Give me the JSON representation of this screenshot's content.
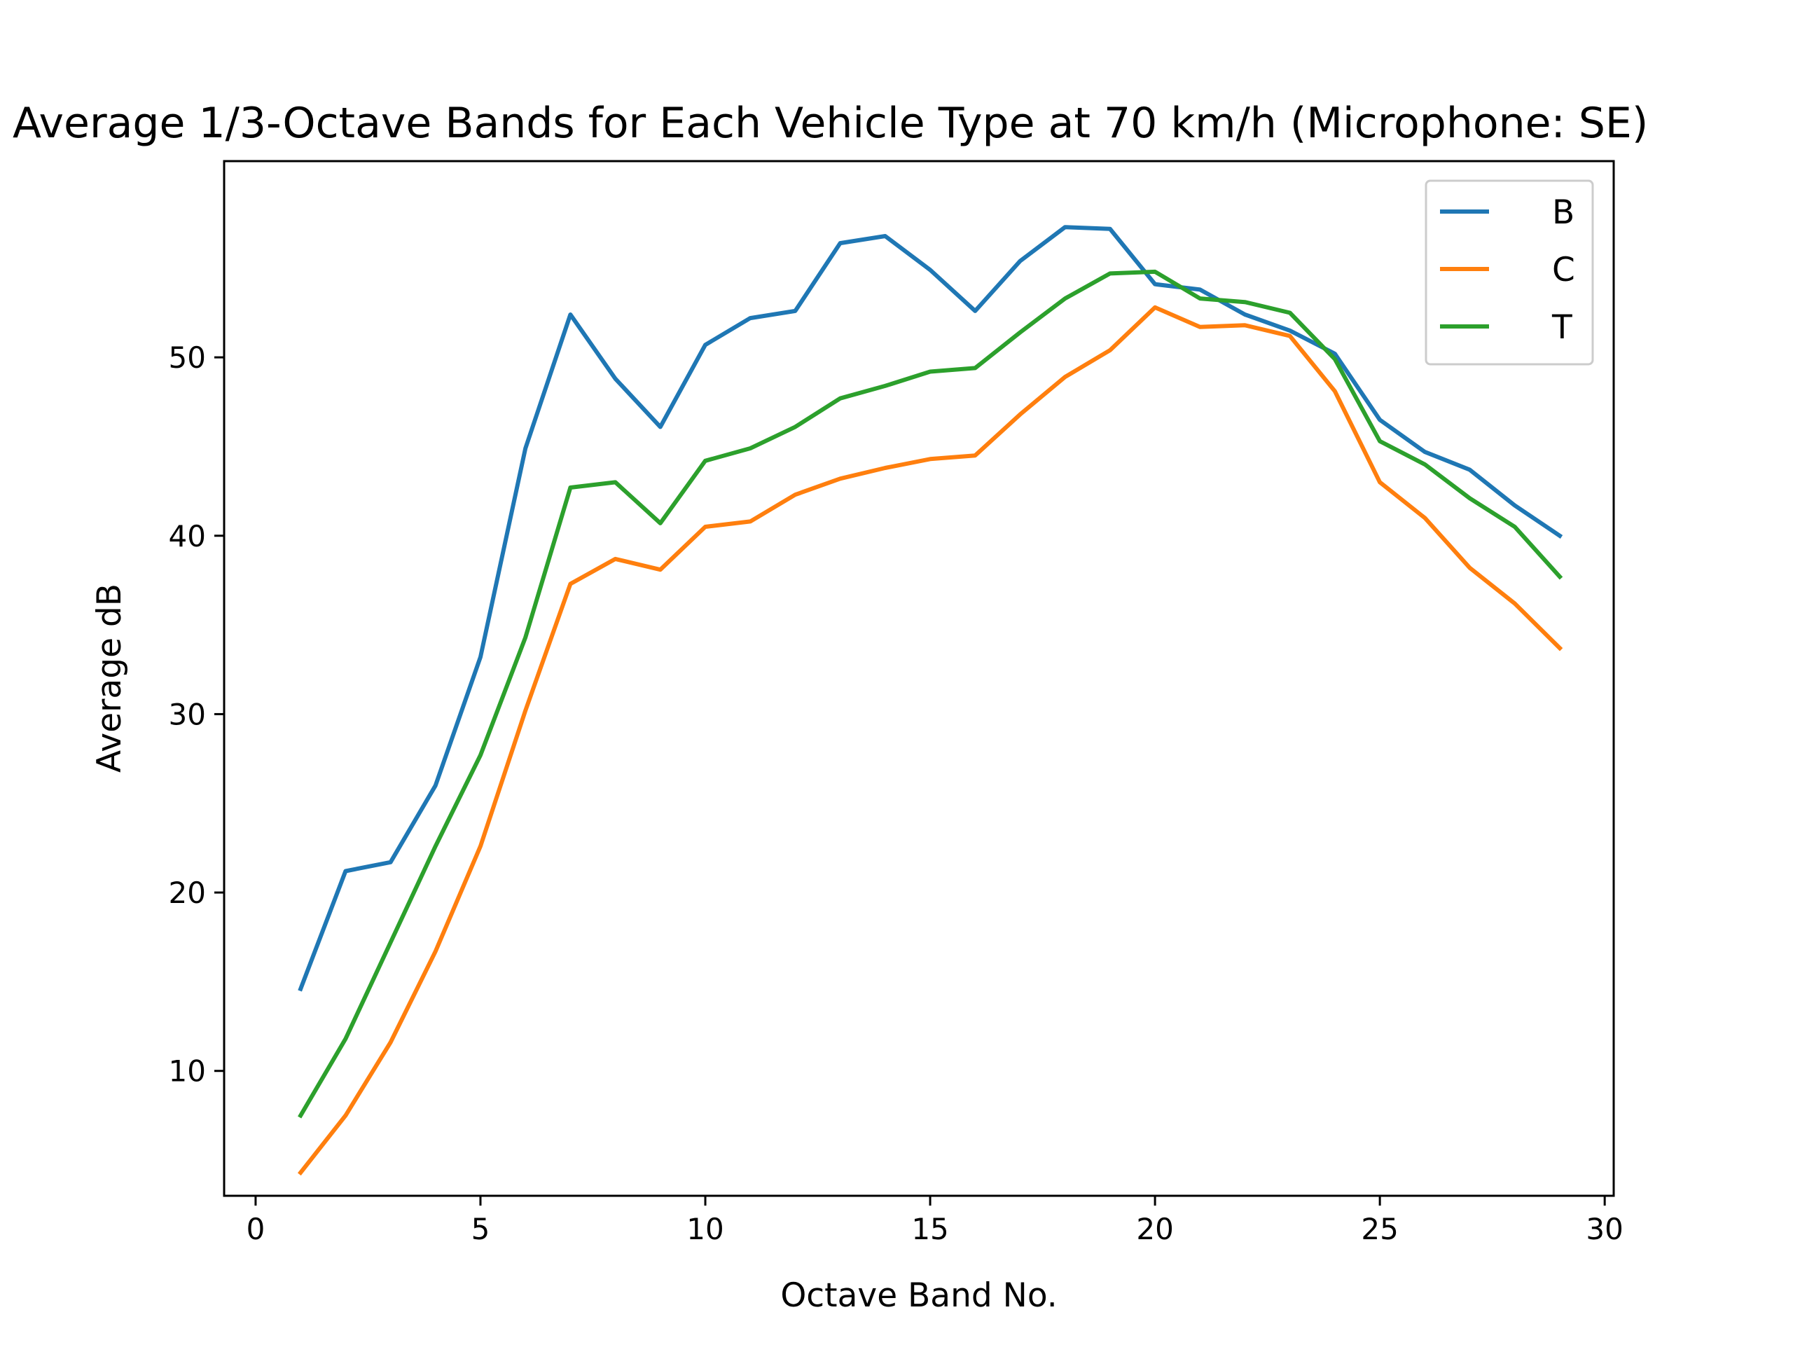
{
  "chart_data": {
    "type": "line",
    "title": "Average 1/3-Octave Bands for Each Vehicle Type at 70 km/h (Microphone: SE)",
    "xlabel": "Octave Band No.",
    "ylabel": "Average dB",
    "xlim": [
      -0.7,
      30.2
    ],
    "ylim": [
      3.0,
      61.0
    ],
    "x_ticks": [
      0,
      5,
      10,
      15,
      20,
      25,
      30
    ],
    "y_ticks": [
      10,
      20,
      30,
      40,
      50
    ],
    "grid": false,
    "legend_position": "top-right",
    "x": [
      1,
      2,
      3,
      4,
      5,
      6,
      7,
      8,
      9,
      10,
      11,
      12,
      13,
      14,
      15,
      16,
      17,
      18,
      19,
      20,
      21,
      22,
      23,
      24,
      25,
      26,
      27,
      28,
      29
    ],
    "series": [
      {
        "name": "B",
        "color": "#1f77b4",
        "values": [
          14.6,
          21.2,
          21.7,
          26.0,
          33.2,
          44.9,
          52.4,
          48.8,
          46.1,
          50.7,
          52.2,
          52.6,
          56.4,
          56.8,
          54.9,
          52.6,
          55.4,
          57.3,
          57.2,
          54.1,
          53.8,
          52.4,
          51.5,
          50.2,
          46.5,
          44.7,
          43.7,
          41.7,
          40.0
        ]
      },
      {
        "name": "C",
        "color": "#ff7f0e",
        "values": [
          4.3,
          7.5,
          11.6,
          16.7,
          22.6,
          30.2,
          37.3,
          38.7,
          38.1,
          40.5,
          40.8,
          42.3,
          43.2,
          43.8,
          44.3,
          44.5,
          46.8,
          48.9,
          50.4,
          52.8,
          51.7,
          51.8,
          51.2,
          48.1,
          43.0,
          41.0,
          38.2,
          36.2,
          33.7
        ]
      },
      {
        "name": "T",
        "color": "#2ca02c",
        "values": [
          7.5,
          11.8,
          17.2,
          22.6,
          27.7,
          34.3,
          42.7,
          43.0,
          40.7,
          44.2,
          44.9,
          46.1,
          47.7,
          48.4,
          49.2,
          49.4,
          51.4,
          53.3,
          54.7,
          54.8,
          53.3,
          53.1,
          52.5,
          49.9,
          45.3,
          44.0,
          42.1,
          40.5,
          37.7
        ]
      }
    ]
  }
}
